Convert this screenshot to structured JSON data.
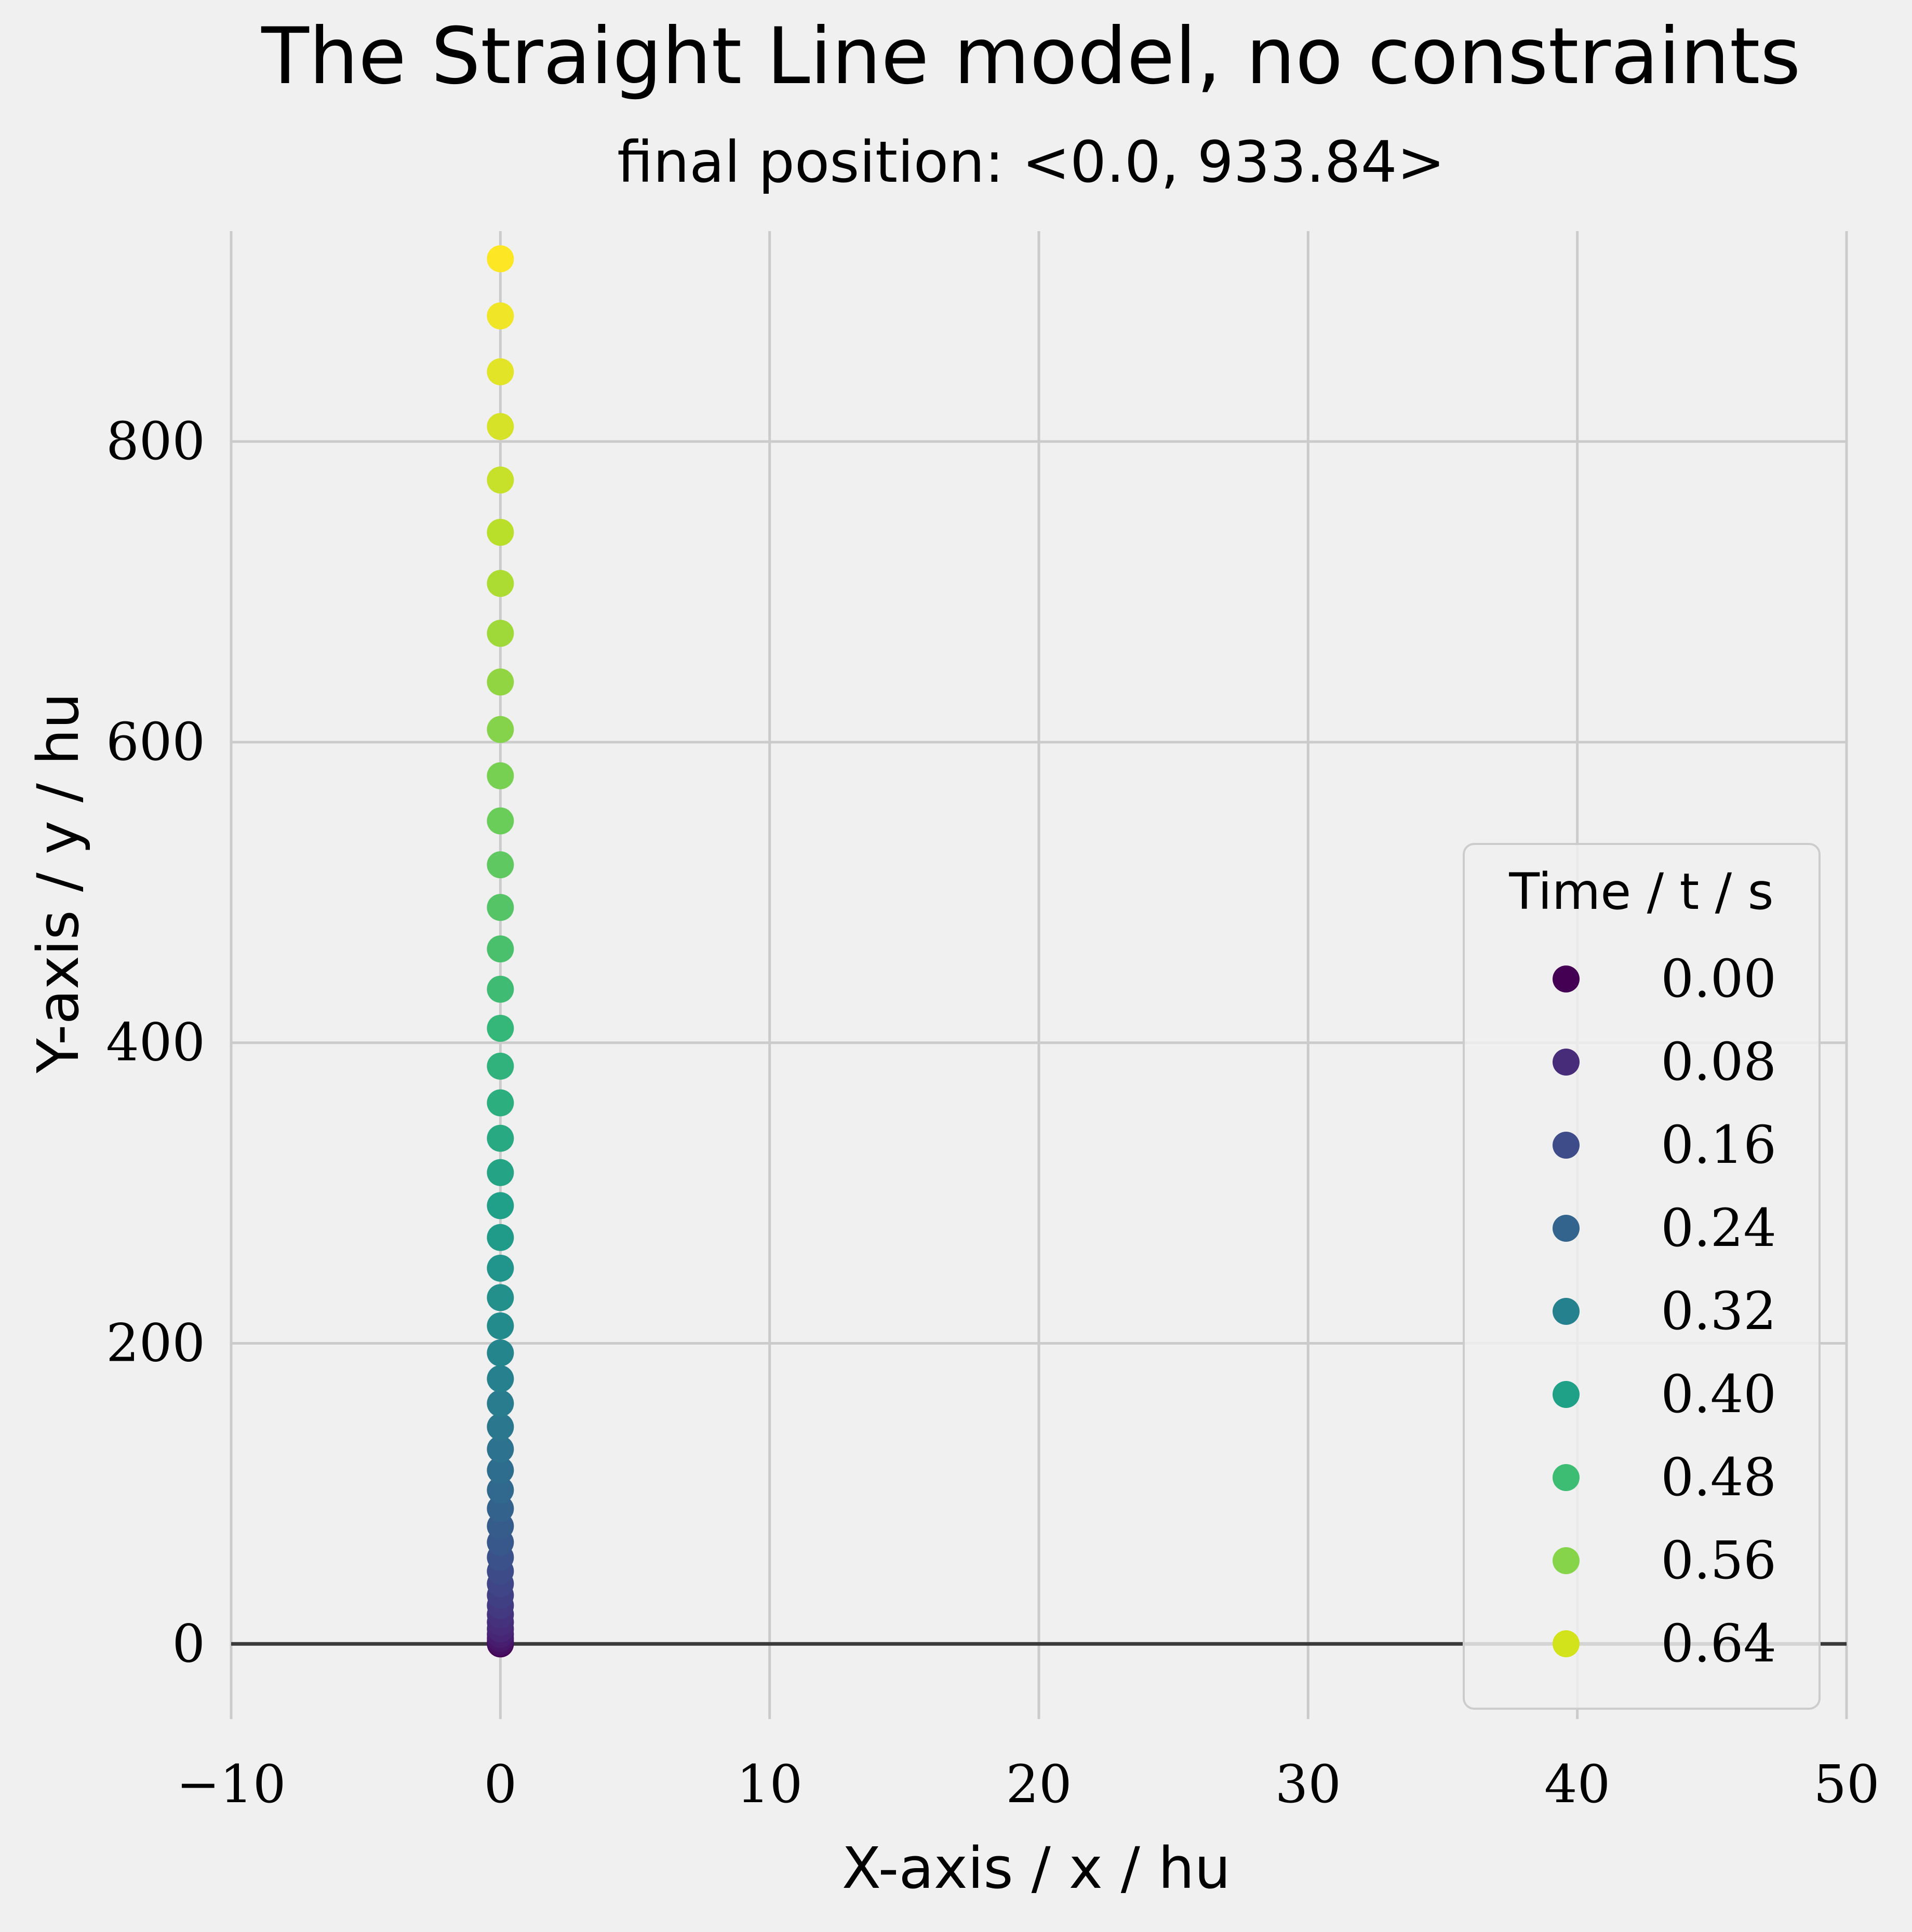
{
  "chart_data": {
    "type": "scatter",
    "title": "The Straight Line model, no constraints",
    "subtitle": "final position: <0.0, 933.84>",
    "xlabel": "X-axis / x / hu",
    "ylabel": "Y-axis / y / hu",
    "xlim": [
      -10,
      50
    ],
    "ylim": [
      -50,
      940
    ],
    "x_ticks": [
      -10,
      0,
      10,
      20,
      30,
      40,
      50
    ],
    "x_tick_labels": [
      "−10",
      "0",
      "10",
      "20",
      "30",
      "40",
      "50"
    ],
    "y_ticks": [
      0,
      200,
      400,
      600,
      800
    ],
    "y_tick_labels": [
      "0",
      "200",
      "400",
      "600",
      "800"
    ],
    "grid": true,
    "zero_line": true,
    "legend": {
      "title": "Time / t / s",
      "placement": "lower-right",
      "entries": [
        {
          "label": "0.00",
          "color": "#440154"
        },
        {
          "label": "0.08",
          "color": "#472c7a"
        },
        {
          "label": "0.16",
          "color": "#3e4c8a"
        },
        {
          "label": "0.24",
          "color": "#32648e"
        },
        {
          "label": "0.32",
          "color": "#26818e"
        },
        {
          "label": "0.40",
          "color": "#1fa188"
        },
        {
          "label": "0.48",
          "color": "#3dbc74"
        },
        {
          "label": "0.56",
          "color": "#85d44a"
        },
        {
          "label": "0.64",
          "color": "#d2e21b"
        }
      ]
    },
    "colormap": "viridis",
    "color_stops": [
      "#440154",
      "#482878",
      "#3e4989",
      "#31688e",
      "#26828e",
      "#1f9e89",
      "#35b779",
      "#6ece58",
      "#b5de2b",
      "#fde725"
    ],
    "series": [
      {
        "x": [
          0,
          0,
          0,
          0,
          0,
          0,
          0,
          0,
          0,
          0,
          0,
          0,
          0,
          0,
          0,
          0,
          0,
          0,
          0,
          0,
          0,
          0,
          0,
          0,
          0,
          0,
          0,
          0,
          0,
          0,
          0,
          0,
          0,
          0,
          0,
          0,
          0,
          0,
          0,
          0,
          0,
          0,
          0,
          0,
          0,
          0,
          0,
          0,
          0
        ],
        "y": [
          0,
          0.4,
          1.6,
          3.6,
          6.4,
          10,
          14.4,
          19.6,
          25.6,
          32.4,
          40,
          48.4,
          57.6,
          67.6,
          78.4,
          90,
          102.4,
          115.6,
          129.6,
          144.4,
          160,
          176.4,
          193.6,
          211.6,
          230.4,
          250,
          270.4,
          291.6,
          313.6,
          336.4,
          360,
          384.4,
          409.6,
          435.6,
          462.4,
          490,
          518.4,
          547.6,
          577.6,
          608.4,
          640,
          672.4,
          705.6,
          739.6,
          774.4,
          810,
          846.4,
          883.6,
          921.6
        ],
        "t": [
          0,
          0.0138,
          0.0277,
          0.0415,
          0.0554,
          0.0692,
          0.0831,
          0.0969,
          0.1108,
          0.1246,
          0.1385,
          0.1523,
          0.1662,
          0.18,
          0.1938,
          0.2077,
          0.2215,
          0.2354,
          0.2492,
          0.2631,
          0.2769,
          0.2908,
          0.3046,
          0.3185,
          0.3323,
          0.3462,
          0.36,
          0.3738,
          0.3877,
          0.4015,
          0.4154,
          0.4292,
          0.4431,
          0.4569,
          0.4708,
          0.4846,
          0.4985,
          0.5123,
          0.5262,
          0.54,
          0.5538,
          0.5677,
          0.5815,
          0.5954,
          0.6092,
          0.6231,
          0.6369,
          0.6508,
          0.6646
        ]
      }
    ]
  }
}
